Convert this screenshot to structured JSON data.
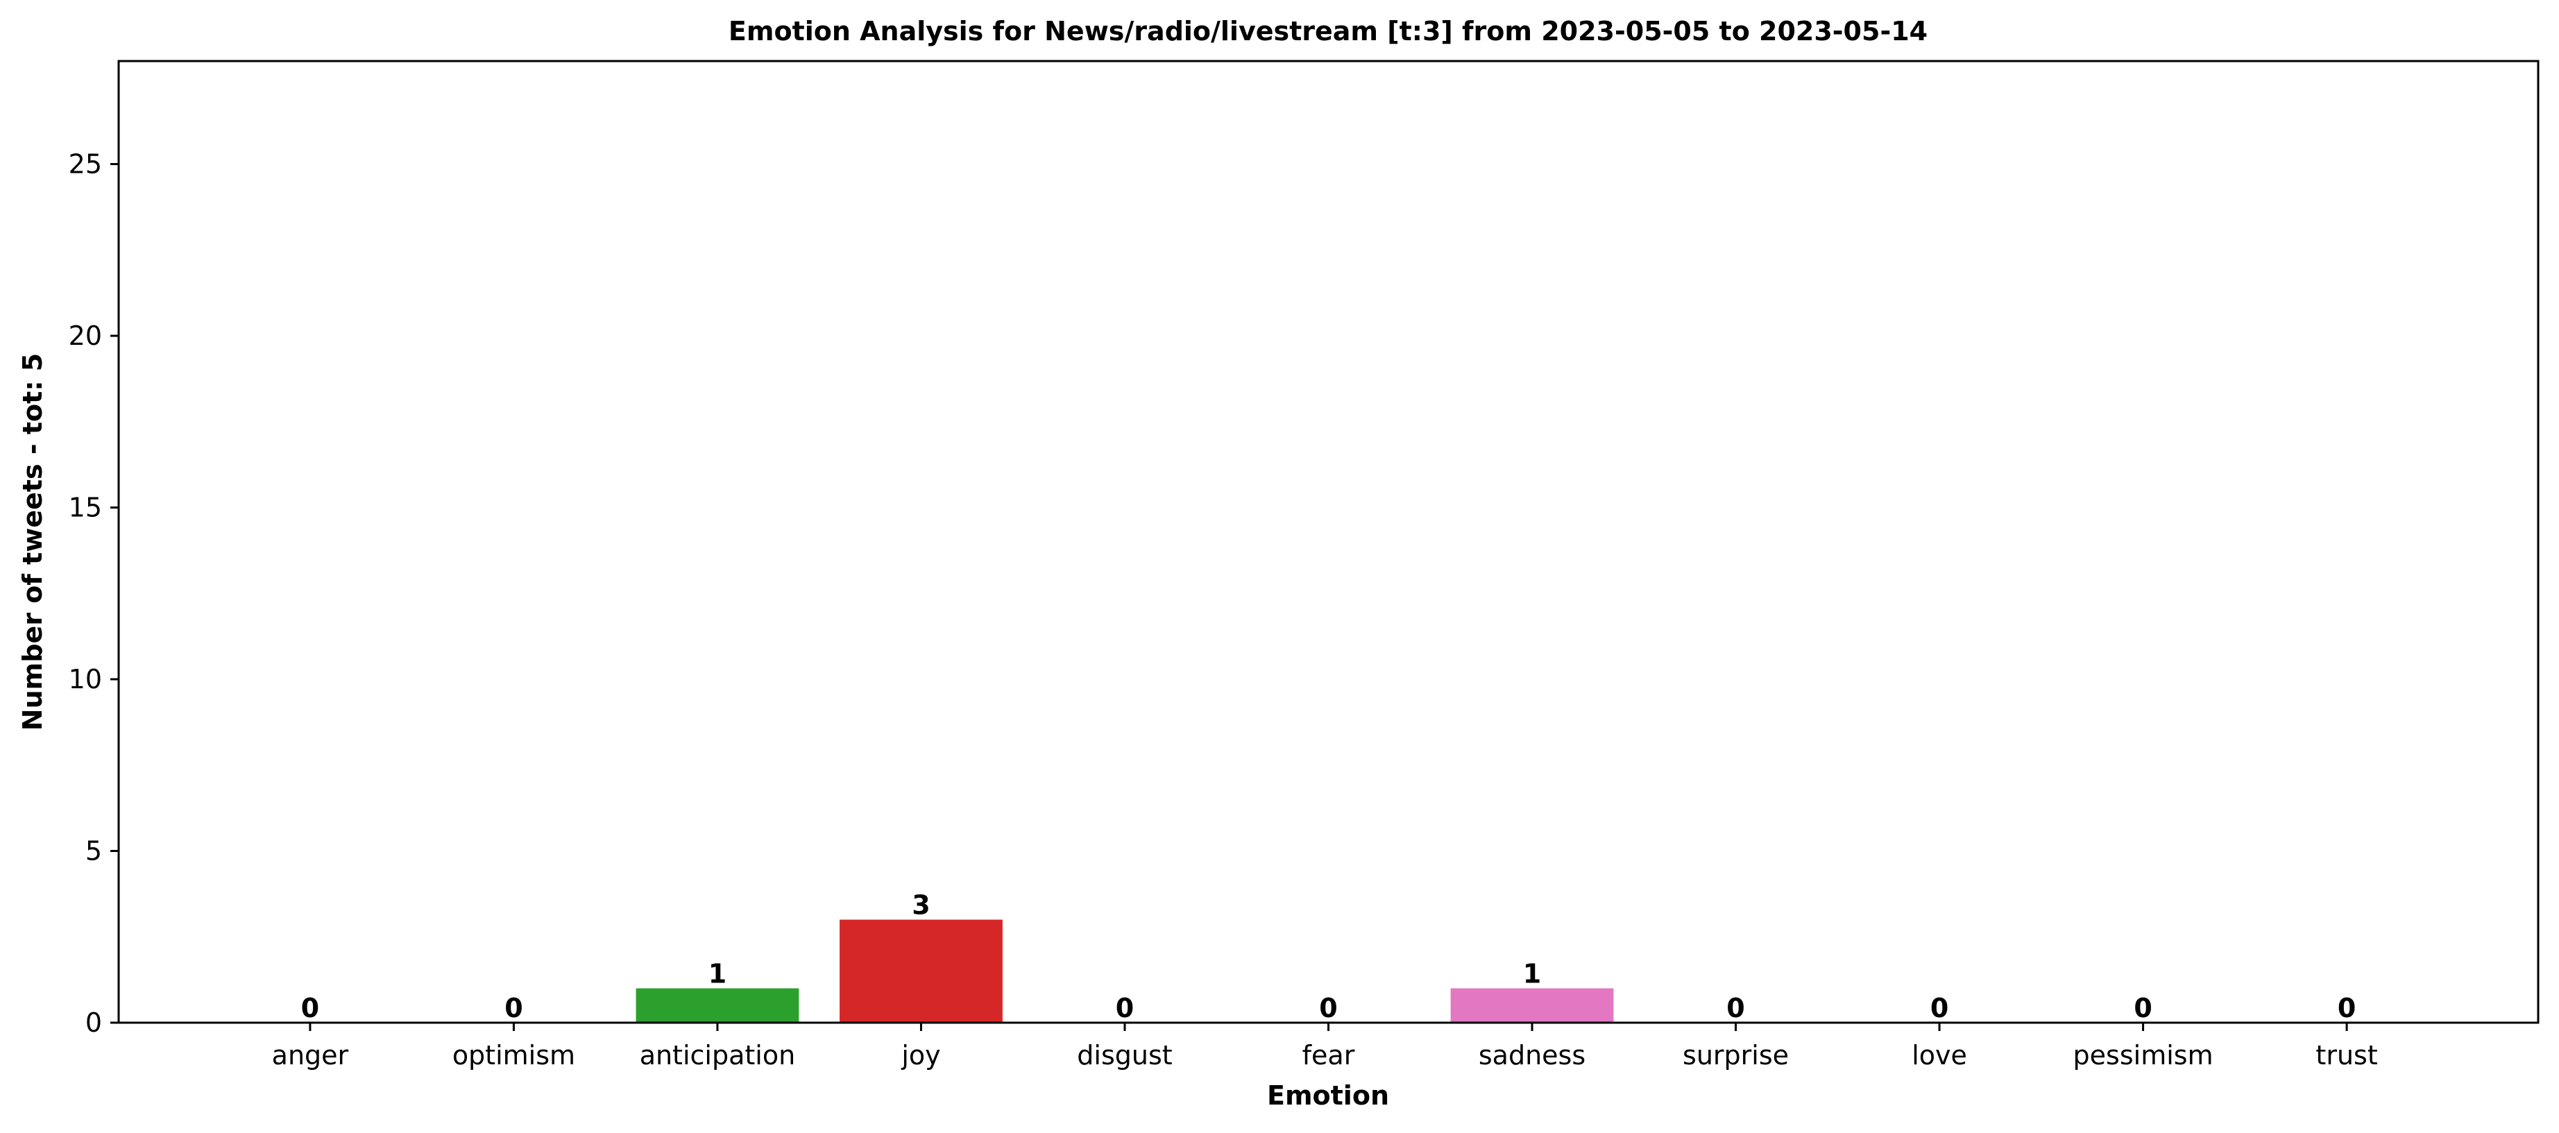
{
  "chart_data": {
    "type": "bar",
    "title": "Emotion Analysis for News/radio/livestream [t:3] from 2023-05-05 to 2023-05-14",
    "xlabel": "Emotion",
    "ylabel": "Number of tweets - tot: 5",
    "categories": [
      "anger",
      "optimism",
      "anticipation",
      "joy",
      "disgust",
      "fear",
      "sadness",
      "surprise",
      "love",
      "pessimism",
      "trust"
    ],
    "values": [
      0,
      0,
      1,
      3,
      0,
      0,
      1,
      0,
      0,
      0,
      0
    ],
    "data_labels": [
      "0",
      "0",
      "1",
      "3",
      "0",
      "0",
      "1",
      "0",
      "0",
      "0",
      "0"
    ],
    "colors": [
      "#1f77b4",
      "#ff7f0e",
      "#2ca02c",
      "#d62728",
      "#9467bd",
      "#8c564b",
      "#e377c2",
      "#7f7f7f",
      "#bcbd22",
      "#17becf",
      "#1f77b4"
    ],
    "ylim": [
      0,
      28
    ],
    "yticks": [
      0,
      5,
      10,
      15,
      20,
      25
    ],
    "ytick_labels": [
      "0",
      "5",
      "10",
      "15",
      "20",
      "25"
    ],
    "xlim": [
      -0.94,
      10.94
    ],
    "grid": false,
    "legend": "none"
  }
}
